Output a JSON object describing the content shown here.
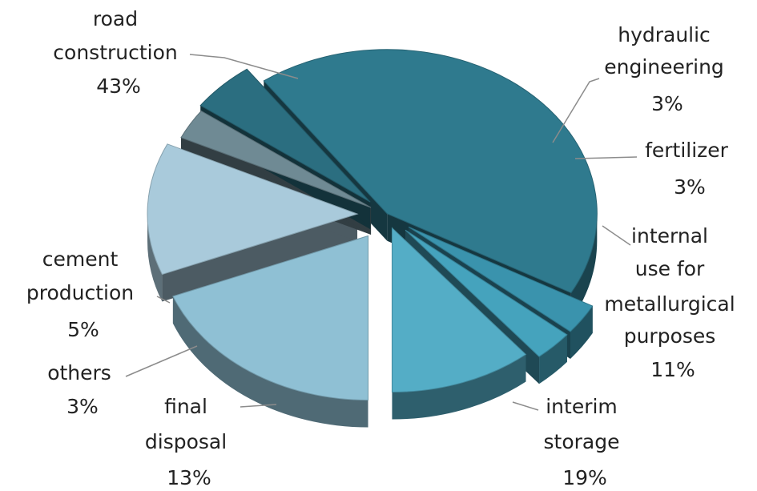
{
  "chart_data": {
    "type": "pie",
    "style": "3d-exploded",
    "title": "",
    "slices": [
      {
        "lines": [
          "road",
          "construction"
        ],
        "pct": "43%",
        "value": 43,
        "color": "#2f7a8e"
      },
      {
        "lines": [
          "hydraulic",
          "engineering"
        ],
        "pct": "3%",
        "value": 3,
        "color": "#3a93ad"
      },
      {
        "lines": [
          "fertilizer"
        ],
        "pct": "3%",
        "value": 3,
        "color": "#45a3bd"
      },
      {
        "lines": [
          "internal",
          "use for",
          "metallurgical",
          "purposes"
        ],
        "pct": "11%",
        "value": 11,
        "color": "#54adc6"
      },
      {
        "lines": [
          "interim",
          "storage"
        ],
        "pct": "19%",
        "value": 19,
        "color": "#8fc0d4"
      },
      {
        "lines": [
          "final",
          "disposal"
        ],
        "pct": "13%",
        "value": 13,
        "color": "#a9cadb"
      },
      {
        "lines": [
          "others"
        ],
        "pct": "3%",
        "value": 3,
        "color": "#6f8a94"
      },
      {
        "lines": [
          "cement",
          "production"
        ],
        "pct": "5%",
        "value": 5,
        "color": "#2b6e80"
      }
    ],
    "legend": "none"
  }
}
